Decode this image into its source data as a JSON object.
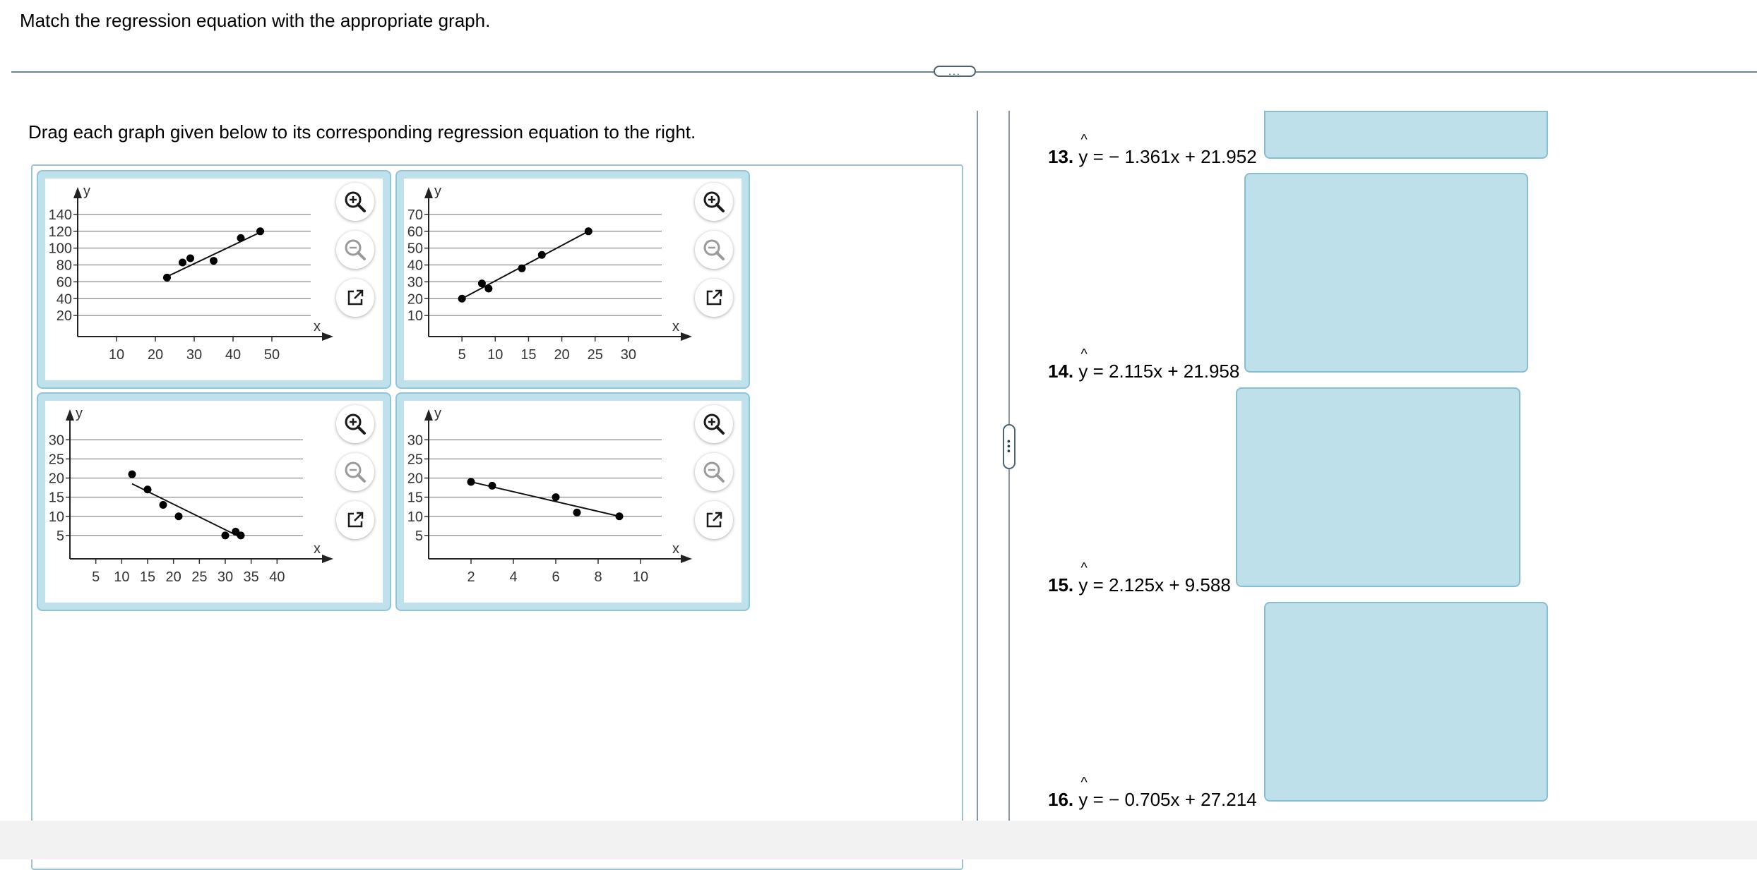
{
  "instruction": "Match the regression equation with the appropriate graph.",
  "pane_handle": "...",
  "drag_instruction": "Drag each graph given below to its corresponding regression equation to the right.",
  "graphs": [
    {
      "x_label": "x",
      "y_label": "y",
      "x_ticks": [
        "10",
        "20",
        "30",
        "40",
        "50"
      ],
      "y_ticks": [
        "20",
        "40",
        "60",
        "80",
        "100",
        "120",
        "140"
      ],
      "chart_data": {
        "type": "scatter",
        "xlim": [
          0,
          60
        ],
        "ylim": [
          0,
          150
        ],
        "points": [
          [
            23,
            65
          ],
          [
            27,
            83
          ],
          [
            29,
            88
          ],
          [
            35,
            85
          ],
          [
            42,
            112
          ],
          [
            47,
            120
          ]
        ],
        "line": [
          [
            22,
            64
          ],
          [
            48,
            121
          ]
        ]
      }
    },
    {
      "x_label": "x",
      "y_label": "y",
      "x_ticks": [
        "5",
        "10",
        "15",
        "20",
        "25",
        "30"
      ],
      "y_ticks": [
        "10",
        "20",
        "30",
        "40",
        "50",
        "60",
        "70"
      ],
      "chart_data": {
        "type": "scatter",
        "xlim": [
          0,
          35
        ],
        "ylim": [
          0,
          75
        ],
        "points": [
          [
            5,
            20
          ],
          [
            8,
            29
          ],
          [
            9,
            26
          ],
          [
            14,
            38
          ],
          [
            17,
            46
          ],
          [
            24,
            60
          ]
        ],
        "line": [
          [
            5,
            20
          ],
          [
            24,
            60
          ]
        ]
      }
    },
    {
      "x_label": "x",
      "y_label": "y",
      "x_ticks": [
        "5",
        "10",
        "15",
        "20",
        "25",
        "30",
        "35",
        "40"
      ],
      "y_ticks": [
        "5",
        "10",
        "15",
        "20",
        "25",
        "30"
      ],
      "chart_data": {
        "type": "scatter",
        "xlim": [
          0,
          45
        ],
        "ylim": [
          0,
          33
        ],
        "points": [
          [
            12,
            21
          ],
          [
            15,
            17
          ],
          [
            18,
            13
          ],
          [
            21,
            10
          ],
          [
            30,
            5
          ],
          [
            32,
            6
          ],
          [
            33,
            5
          ]
        ],
        "line": [
          [
            12,
            18.5
          ],
          [
            33,
            4.5
          ]
        ]
      }
    },
    {
      "x_label": "x",
      "y_label": "y",
      "x_ticks": [
        "2",
        "4",
        "6",
        "8",
        "10"
      ],
      "y_ticks": [
        "5",
        "10",
        "15",
        "20",
        "25",
        "30"
      ],
      "chart_data": {
        "type": "scatter",
        "xlim": [
          0,
          11
        ],
        "ylim": [
          0,
          33
        ],
        "points": [
          [
            2,
            19
          ],
          [
            3,
            18
          ],
          [
            6,
            15
          ],
          [
            7,
            11
          ],
          [
            9,
            10
          ]
        ],
        "line": [
          [
            2,
            19
          ],
          [
            9,
            10
          ]
        ]
      }
    }
  ],
  "answers": [
    {
      "num": "13.",
      "y": "y",
      "eq": "= − 1.361x + 21.952"
    },
    {
      "num": "14.",
      "y": "y",
      "eq": "= 2.115x + 21.958"
    },
    {
      "num": "15.",
      "y": "y",
      "eq": "= 2.125x + 9.588"
    },
    {
      "num": "16.",
      "y": "y",
      "eq": "= − 0.705x + 27.214"
    }
  ],
  "icons": [
    "zoom-in-icon",
    "zoom-out-icon",
    "open-in-new-window-icon"
  ],
  "colors": {
    "card_border": "#8fc6da",
    "drop_zone": "#bde0ea",
    "point": "#000000"
  }
}
